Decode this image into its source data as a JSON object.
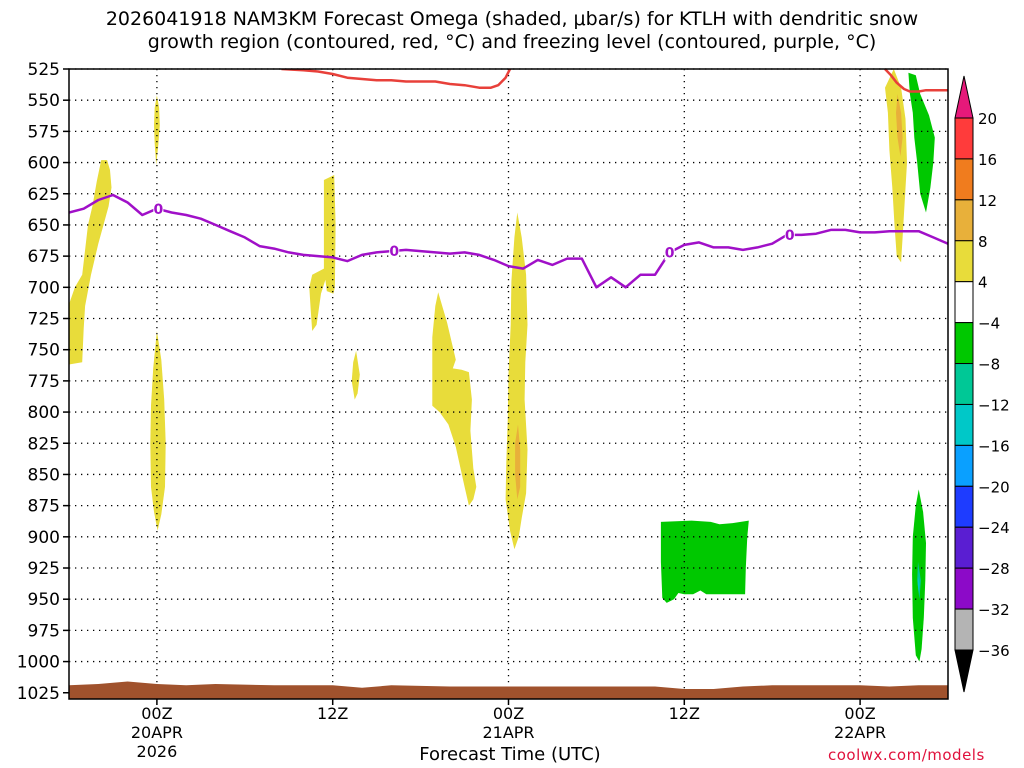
{
  "title": "2026041918 NAM3KM Forecast Omega (shaded, μbar/s) for KTLH with dendritic snow\ngrowth region (contoured, red, °C) and freezing level (contoured, purple, °C)",
  "credit": "coolwx.com/models",
  "chart_data": {
    "type": "contour",
    "xlabel": "Forecast Time (UTC)",
    "x_ticks": [
      {
        "hour": 6,
        "label": [
          "00Z",
          "20APR",
          "2026"
        ]
      },
      {
        "hour": 18,
        "label": [
          "12Z"
        ]
      },
      {
        "hour": 30,
        "label": [
          "00Z",
          "21APR"
        ]
      },
      {
        "hour": 42,
        "label": [
          "12Z"
        ]
      },
      {
        "hour": 54,
        "label": [
          "00Z",
          "22APR"
        ]
      }
    ],
    "x_range_hours": [
      0,
      60
    ],
    "y_axis": "pressure (mb), inverted",
    "y_ticks": [
      525,
      550,
      575,
      600,
      625,
      650,
      675,
      700,
      725,
      750,
      775,
      800,
      825,
      850,
      875,
      900,
      925,
      950,
      975,
      1000,
      1025
    ],
    "y_range": [
      525,
      1030
    ],
    "colorbar": {
      "labels": [
        "20",
        "16",
        "12",
        "8",
        "4",
        "−4",
        "−8",
        "−12",
        "−16",
        "−20",
        "−24",
        "−28",
        "−32",
        "−36"
      ],
      "colors": [
        "#ff3b3b",
        "#f07c1e",
        "#e8b03a",
        "#e8dc3a",
        "#ffffff",
        "#00c800",
        "#00c896",
        "#00c8c8",
        "#0aa0ff",
        "#1e3cff",
        "#5a1ed2",
        "#8c0ac8",
        "#b4b4b4"
      ],
      "top_arrow": "#e6197a",
      "bottom_arrow": "#000000"
    },
    "freezing_level": {
      "name": "freezing level (0°C, purple)",
      "color": "#a010c8",
      "label": "0",
      "label_at_hours": [
        6.1,
        22.2,
        41.0,
        49.2
      ],
      "x_hours": [
        0,
        1,
        2,
        3,
        4,
        5,
        6,
        7,
        8,
        9,
        10,
        11,
        12,
        13,
        14,
        15,
        16,
        17,
        18,
        19,
        20,
        21,
        22,
        23,
        24,
        25,
        26,
        27,
        28,
        29,
        30,
        31,
        32,
        33,
        34,
        35,
        36,
        37,
        38,
        39,
        40,
        41,
        42,
        43,
        44,
        45,
        46,
        47,
        48,
        49,
        50,
        51,
        52,
        53,
        54,
        55,
        56,
        57,
        58,
        59,
        60
      ],
      "pressure": [
        640,
        637,
        630,
        626,
        632,
        642,
        637,
        640,
        642,
        645,
        650,
        655,
        660,
        667,
        669,
        672,
        674,
        675,
        676,
        679,
        674,
        672,
        671,
        670,
        671,
        672,
        673,
        672,
        674,
        678,
        683,
        685,
        678,
        682,
        677,
        677,
        700,
        692,
        700,
        690,
        690,
        672,
        666,
        664,
        668,
        668,
        670,
        668,
        665,
        658,
        658,
        657,
        654,
        654,
        656,
        656,
        655,
        655,
        655,
        660,
        665
      ]
    },
    "dgz_contours": [
      {
        "name": "dendritic growth region (red)",
        "color": "#e8403a",
        "points": [
          [
            14.5,
            525
          ],
          [
            16,
            526
          ],
          [
            17,
            527
          ],
          [
            18,
            529
          ],
          [
            19,
            532
          ],
          [
            20,
            533
          ],
          [
            21,
            534
          ],
          [
            22,
            534
          ],
          [
            23,
            535
          ],
          [
            24,
            535
          ],
          [
            25,
            535
          ],
          [
            26,
            537
          ],
          [
            27,
            538
          ],
          [
            28,
            540
          ],
          [
            28.8,
            540
          ],
          [
            29.3,
            538
          ],
          [
            29.8,
            532
          ],
          [
            30.1,
            525
          ]
        ]
      },
      {
        "name": "dendritic growth region (red)",
        "color": "#e8403a",
        "points": [
          [
            55.7,
            525
          ],
          [
            56.1,
            530
          ],
          [
            56.5,
            536
          ],
          [
            57,
            541
          ],
          [
            57.4,
            543
          ],
          [
            58,
            543
          ],
          [
            58.5,
            542
          ],
          [
            59.1,
            542
          ],
          [
            60,
            542
          ]
        ]
      }
    ],
    "omega_regions": [
      {
        "value_class": "4 to 8",
        "color": "#e8dc3a",
        "polygon": [
          [
            -0.1,
            717
          ],
          [
            0.4,
            700
          ],
          [
            0.9,
            690
          ],
          [
            1.1,
            670
          ],
          [
            1.3,
            650
          ],
          [
            1.6,
            635
          ],
          [
            1.9,
            615
          ],
          [
            2.2,
            598
          ],
          [
            2.6,
            598
          ],
          [
            2.8,
            606
          ],
          [
            2.9,
            620
          ],
          [
            2.7,
            635
          ],
          [
            2.4,
            648
          ],
          [
            2.0,
            665
          ],
          [
            1.5,
            690
          ],
          [
            1.1,
            715
          ],
          [
            1.0,
            733
          ],
          [
            0.9,
            760
          ],
          [
            -0.1,
            762
          ]
        ]
      },
      {
        "value_class": "4 to 8",
        "color": "#e8dc3a",
        "polygon": [
          [
            6.0,
            546
          ],
          [
            6.15,
            556
          ],
          [
            6.2,
            570
          ],
          [
            6.1,
            585
          ],
          [
            5.95,
            602
          ],
          [
            5.85,
            585
          ],
          [
            5.8,
            570
          ],
          [
            5.85,
            556
          ]
        ]
      },
      {
        "value_class": "4 to 8",
        "color": "#e8dc3a",
        "polygon": [
          [
            6.0,
            735
          ],
          [
            6.3,
            758
          ],
          [
            6.5,
            790
          ],
          [
            6.6,
            825
          ],
          [
            6.55,
            860
          ],
          [
            6.3,
            882
          ],
          [
            6.05,
            895
          ],
          [
            5.8,
            880
          ],
          [
            5.6,
            860
          ],
          [
            5.55,
            825
          ],
          [
            5.6,
            795
          ],
          [
            5.75,
            765
          ]
        ]
      },
      {
        "value_class": "4 to 8",
        "color": "#e8dc3a",
        "polygon": [
          [
            17.4,
            614
          ],
          [
            18.1,
            610
          ],
          [
            18.2,
            650
          ],
          [
            18.15,
            700
          ],
          [
            18.05,
            705
          ],
          [
            17.6,
            703
          ],
          [
            17.5,
            694
          ],
          [
            17.2,
            705
          ],
          [
            16.9,
            730
          ],
          [
            16.6,
            735
          ],
          [
            16.5,
            718
          ],
          [
            16.4,
            700
          ],
          [
            16.6,
            690
          ],
          [
            17.4,
            685
          ]
        ]
      },
      {
        "value_class": "4 to 8",
        "color": "#e8dc3a",
        "polygon": [
          [
            19.6,
            751
          ],
          [
            19.85,
            770
          ],
          [
            19.7,
            785
          ],
          [
            19.5,
            790
          ],
          [
            19.3,
            775
          ],
          [
            19.4,
            760
          ]
        ]
      },
      {
        "value_class": "4 to 8",
        "color": "#e8dc3a",
        "polygon": [
          [
            25.2,
            704
          ],
          [
            25.8,
            728
          ],
          [
            26.4,
            758
          ],
          [
            26.2,
            765
          ],
          [
            26.8,
            766
          ],
          [
            27.3,
            768
          ],
          [
            27.5,
            790
          ],
          [
            27.4,
            815
          ],
          [
            27.6,
            845
          ],
          [
            27.8,
            860
          ],
          [
            27.6,
            870
          ],
          [
            27.3,
            875
          ],
          [
            27.0,
            860
          ],
          [
            26.4,
            828
          ],
          [
            25.9,
            810
          ],
          [
            25.3,
            800
          ],
          [
            24.8,
            795
          ],
          [
            24.8,
            740
          ],
          [
            25.0,
            715
          ]
        ]
      },
      {
        "value_class": "4 to 8",
        "color": "#e8dc3a",
        "polygon": [
          [
            30.6,
            640
          ],
          [
            30.9,
            660
          ],
          [
            31.2,
            690
          ],
          [
            31.3,
            730
          ],
          [
            31.15,
            760
          ],
          [
            31.1,
            790
          ],
          [
            31.3,
            830
          ],
          [
            31.2,
            865
          ],
          [
            30.9,
            885
          ],
          [
            30.7,
            900
          ],
          [
            30.4,
            910
          ],
          [
            30.1,
            895
          ],
          [
            29.8,
            870
          ],
          [
            29.85,
            840
          ],
          [
            29.95,
            805
          ],
          [
            30.0,
            770
          ],
          [
            30.15,
            730
          ],
          [
            30.2,
            695
          ],
          [
            30.4,
            660
          ]
        ]
      },
      {
        "value_class": "8 to 12",
        "color": "#e8b03a",
        "polygon": [
          [
            30.65,
            810
          ],
          [
            30.8,
            830
          ],
          [
            30.8,
            860
          ],
          [
            30.6,
            870
          ],
          [
            30.45,
            850
          ],
          [
            30.45,
            825
          ]
        ]
      },
      {
        "value_class": "4 to 8",
        "color": "#e8dc3a",
        "polygon": [
          [
            56.3,
            525
          ],
          [
            56.8,
            540
          ],
          [
            57.1,
            565
          ],
          [
            57.2,
            600
          ],
          [
            57.05,
            630
          ],
          [
            56.9,
            660
          ],
          [
            56.8,
            680
          ],
          [
            56.5,
            675
          ],
          [
            56.35,
            650
          ],
          [
            56.2,
            620
          ],
          [
            56.0,
            590
          ],
          [
            55.9,
            560
          ],
          [
            55.7,
            540
          ]
        ]
      },
      {
        "value_class": "8 to 12",
        "color": "#e8b03a",
        "polygon": [
          [
            56.55,
            545
          ],
          [
            56.8,
            560
          ],
          [
            56.9,
            580
          ],
          [
            56.75,
            595
          ],
          [
            56.55,
            580
          ],
          [
            56.45,
            560
          ]
        ]
      },
      {
        "value_class": "-8 to -4",
        "color": "#00c800",
        "polygon": [
          [
            57.3,
            528
          ],
          [
            57.8,
            530
          ],
          [
            58.1,
            545
          ],
          [
            58.7,
            562
          ],
          [
            59.1,
            580
          ],
          [
            59.0,
            600
          ],
          [
            58.8,
            620
          ],
          [
            58.5,
            640
          ],
          [
            58.1,
            625
          ],
          [
            57.9,
            600
          ],
          [
            57.7,
            580
          ],
          [
            57.6,
            560
          ],
          [
            57.4,
            545
          ]
        ]
      },
      {
        "value_class": "-8 to -4",
        "color": "#00c800",
        "polygon": [
          [
            42.5,
            887
          ],
          [
            43.8,
            888
          ],
          [
            44.4,
            890
          ],
          [
            45.3,
            889
          ],
          [
            46.4,
            887
          ],
          [
            46.3,
            900
          ],
          [
            46.2,
            925
          ],
          [
            46.15,
            946
          ],
          [
            44.8,
            946
          ],
          [
            43.5,
            946
          ],
          [
            43.1,
            943
          ],
          [
            42.6,
            946
          ],
          [
            42.0,
            946
          ],
          [
            41.6,
            945
          ],
          [
            41.3,
            950
          ],
          [
            40.8,
            953
          ],
          [
            40.5,
            949
          ],
          [
            40.4,
            920
          ],
          [
            40.4,
            888
          ]
        ]
      },
      {
        "value_class": "-8 to -4",
        "color": "#00c800",
        "polygon": [
          [
            58.0,
            862
          ],
          [
            58.3,
            880
          ],
          [
            58.5,
            905
          ],
          [
            58.45,
            935
          ],
          [
            58.35,
            965
          ],
          [
            58.2,
            990
          ],
          [
            58.05,
            1000
          ],
          [
            57.8,
            995
          ],
          [
            57.6,
            965
          ],
          [
            57.55,
            930
          ],
          [
            57.6,
            900
          ],
          [
            57.8,
            875
          ]
        ]
      },
      {
        "value_class": "-12 to -8",
        "color": "#00c896",
        "polygon": [
          [
            57.95,
            920
          ],
          [
            58.15,
            935
          ],
          [
            58.05,
            950
          ],
          [
            57.9,
            935
          ]
        ]
      },
      {
        "value_class": "-16 to -12",
        "color": "#00c8c8",
        "polygon": [
          [
            57.97,
            932
          ],
          [
            58.06,
            938
          ],
          [
            58.0,
            945
          ],
          [
            57.94,
            938
          ]
        ]
      }
    ],
    "terrain": {
      "name": "below ground",
      "color": "#a0522d",
      "x_hours": [
        0,
        2,
        4,
        6,
        8,
        10,
        14,
        18,
        20,
        22,
        26,
        30,
        34,
        38,
        40,
        42,
        44,
        46,
        48,
        50,
        52,
        54,
        56,
        58,
        60
      ],
      "surface_pressure": [
        1019,
        1018,
        1016,
        1018,
        1019,
        1018,
        1019,
        1019,
        1021,
        1019,
        1020,
        1020,
        1020,
        1020,
        1020,
        1022,
        1022,
        1020,
        1019,
        1019,
        1019,
        1019,
        1020,
        1019,
        1019
      ]
    }
  }
}
